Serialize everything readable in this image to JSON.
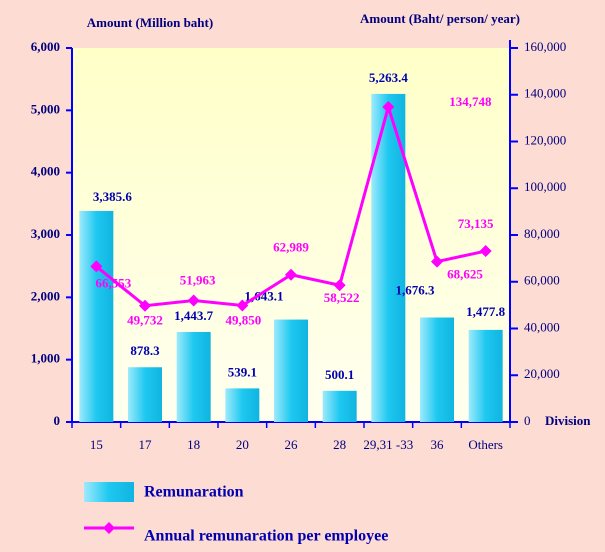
{
  "chart_data": {
    "type": "combo",
    "y_label": "Amount (Million baht)",
    "y2_label": "Amount (Baht/ person/ year)",
    "x_label": "Division",
    "categories": [
      "15",
      "17",
      "18",
      "20",
      "26",
      "28",
      "29,31 -33",
      "36",
      "Others"
    ],
    "ylim": [
      0,
      6000
    ],
    "yticks": [
      0,
      {
        "value": 1000,
        "label": "1,000"
      },
      {
        "value": 2000,
        "label": "2,000"
      },
      {
        "value": 3000,
        "label": "3,000"
      },
      {
        "value": 4000,
        "label": "4,000"
      },
      {
        "value": 5000,
        "label": "5,000"
      },
      {
        "value": 6000,
        "label": "6,000"
      }
    ],
    "y2lim": [
      0,
      160000
    ],
    "y2ticks": [
      0,
      {
        "value": 20000,
        "label": "20,000"
      },
      {
        "value": 40000,
        "label": "40,000"
      },
      {
        "value": 60000,
        "label": "60,000"
      },
      {
        "value": 80000,
        "label": "80,000"
      },
      {
        "value": 100000,
        "label": "100,000"
      },
      {
        "value": 120000,
        "label": "120,000"
      },
      {
        "value": 140000,
        "label": "140,000"
      },
      {
        "value": 160000,
        "label": "160,000"
      }
    ],
    "series": [
      {
        "name": "Remunaration",
        "type": "bar",
        "color": "#1ec8f0",
        "values": [
          3385.6,
          878.3,
          1443.7,
          539.1,
          1643.1,
          500.1,
          5263.4,
          1676.3,
          1477.8
        ],
        "value_labels": [
          "3,385.6",
          "878.3",
          "1,443.7",
          "539.1",
          "1,643.1",
          "500.1",
          "5,263.4",
          "1,676.3",
          "1,477.8"
        ]
      },
      {
        "name": "Annual remunaration per employee",
        "type": "line",
        "axis": "y2",
        "color": "#ff00ff",
        "values": [
          66553,
          49732,
          51963,
          49850,
          62989,
          58522,
          134748,
          68625,
          73135
        ],
        "value_labels": [
          "66,553",
          "49,732",
          "51,963",
          "49,850",
          "62,989",
          "58,522",
          "134,748",
          "68,625",
          "73,135"
        ]
      }
    ]
  }
}
